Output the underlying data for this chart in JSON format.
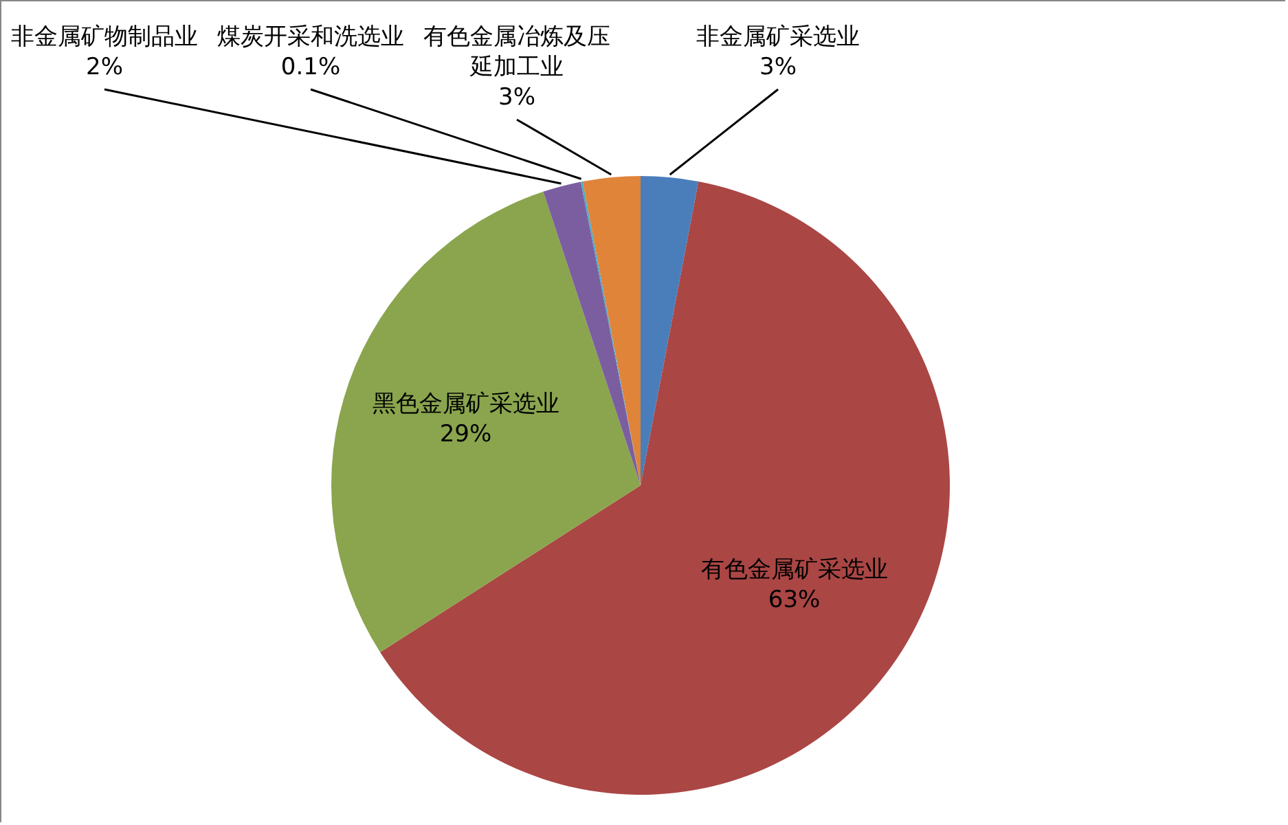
{
  "chart_data": {
    "type": "pie",
    "categories": [
      "非金属矿采选业",
      "有色金属矿采选业",
      "黑色金属矿采选业",
      "非金属矿物制品业",
      "煤炭开采和洗选业",
      "有色金属冶炼及压延加工业"
    ],
    "values": [
      3,
      63,
      29,
      2,
      0.1,
      3
    ],
    "colors": [
      "#4a7ebb",
      "#aa4644",
      "#8aa54e",
      "#7b5ea0",
      "#4bacc6",
      "#e0843a"
    ],
    "value_labels": [
      "3%",
      "63%",
      "29%",
      "2%",
      "0.1%",
      "3%"
    ]
  }
}
